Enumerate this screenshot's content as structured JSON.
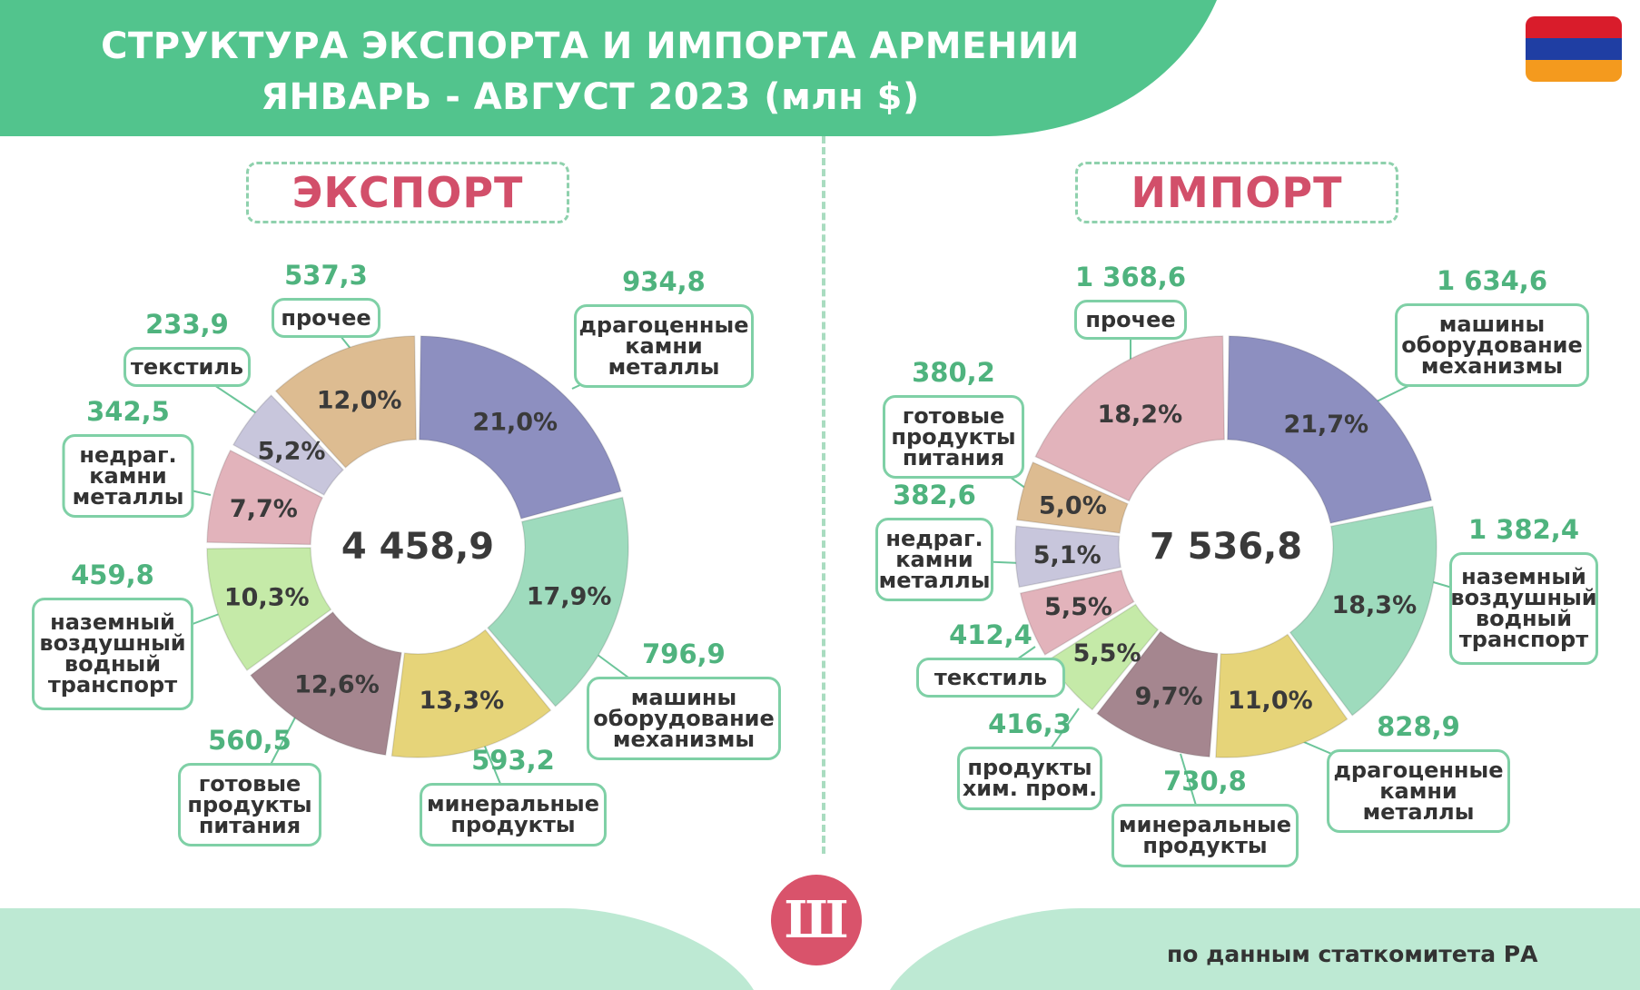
{
  "header": {
    "title_line_1": "СТРУКТУРА ЭКСПОРТА И ИМПОРТА АРМЕНИИ",
    "title_line_2": "ЯНВАРЬ - АВГУСТ 2023 (млн $)",
    "flag_colors": [
      "#d91c2b",
      "#1f3ea3",
      "#f49a1e"
    ]
  },
  "colors": {
    "header_green": "#52c48d",
    "footer_green": "#bde9d3",
    "callout_border": "#7fd0a6",
    "value_green": "#4fb37e",
    "section_title": "#d24f6a"
  },
  "logo": {
    "letter": "Ш",
    "icon": "sh-logo-icon"
  },
  "footer": {
    "source": "по данным статкомитета РА"
  },
  "chart_data": [
    {
      "type": "pie",
      "section_title": "ЭКСПОРТ",
      "total": "4 458,9",
      "slices": [
        {
          "label": "драгоценные\nкамни\nметаллы",
          "value": "934,8",
          "percent": "21,0%",
          "pct": 21.0,
          "color": "#8d8fc0"
        },
        {
          "label": "машины\nоборудование\nмеханизмы",
          "value": "796,9",
          "percent": "17,9%",
          "pct": 17.9,
          "color": "#9edbbd"
        },
        {
          "label": "минеральные\nпродукты",
          "value": "593,2",
          "percent": "13,3%",
          "pct": 13.3,
          "color": "#e6d479"
        },
        {
          "label": "готовые\nпродукты\nпитания",
          "value": "560,5",
          "percent": "12,6%",
          "pct": 12.6,
          "color": "#a5868f"
        },
        {
          "label": "наземный\nвоздушный\nводный\nтранспорт",
          "value": "459,8",
          "percent": "10,3%",
          "pct": 10.3,
          "color": "#c5eaa8"
        },
        {
          "label": "недраг.\nкамни\nметаллы",
          "value": "342,5",
          "percent": "7,7%",
          "pct": 7.7,
          "color": "#e2b3bb"
        },
        {
          "label": "текстиль",
          "value": "233,9",
          "percent": "5,2%",
          "pct": 5.2,
          "color": "#c8c6dc"
        },
        {
          "label": "прочее",
          "value": "537,3",
          "percent": "12,0%",
          "pct": 12.0,
          "color": "#ddbc91"
        }
      ]
    },
    {
      "type": "pie",
      "section_title": "ИМПОРТ",
      "total": "7 536,8",
      "slices": [
        {
          "label": "машины\nоборудование\nмеханизмы",
          "value": "1 634,6",
          "percent": "21,7%",
          "pct": 21.7,
          "color": "#8d8fc0"
        },
        {
          "label": "наземный\nвоздушный\nводный\nтранспорт",
          "value": "1 382,4",
          "percent": "18,3%",
          "pct": 18.3,
          "color": "#9edbbd"
        },
        {
          "label": "драгоценные\nкамни\nметаллы",
          "value": "828,9",
          "percent": "11,0%",
          "pct": 11.0,
          "color": "#e6d479"
        },
        {
          "label": "минеральные\nпродукты",
          "value": "730,8",
          "percent": "9,7%",
          "pct": 9.7,
          "color": "#a5868f"
        },
        {
          "label": "продукты\nхим. пром.",
          "value": "416,3",
          "percent": "5,5%",
          "pct": 5.5,
          "color": "#c5eaa8"
        },
        {
          "label": "текстиль",
          "value": "412,4",
          "percent": "5,5%",
          "pct": 5.5,
          "color": "#e2b3bb"
        },
        {
          "label": "недраг.\nкамни\nметаллы",
          "value": "382,6",
          "percent": "5,1%",
          "pct": 5.1,
          "color": "#c8c6dc"
        },
        {
          "label": "готовые\nпродукты\nпитания",
          "value": "380,2",
          "percent": "5,0%",
          "pct": 5.0,
          "color": "#ddbc91"
        },
        {
          "label": "прочее",
          "value": "1 368,6",
          "percent": "18,2%",
          "pct": 18.2,
          "color": "#e2b3bb"
        }
      ]
    }
  ]
}
